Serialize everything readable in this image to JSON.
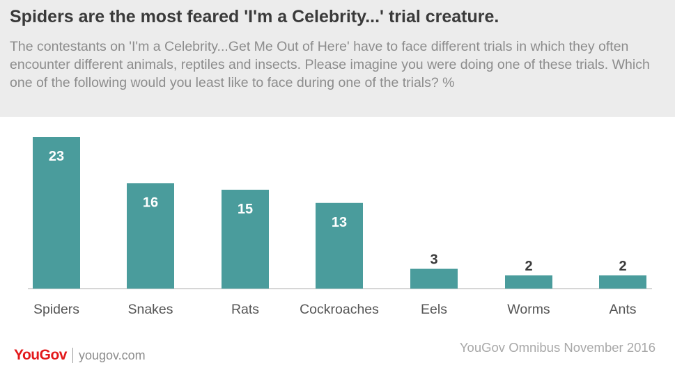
{
  "title": "Spiders are the most feared 'I'm a Celebrity...' trial creature.",
  "subtitle": "The contestants on 'I'm a Celebrity...Get Me Out of Here' have to face different trials in which they often encounter different animals, reptiles and insects. Please imagine you were doing one of these trials. Which one of the following would you least like to face during one of the trials? %",
  "footer": {
    "logo": "YouGov",
    "site": "yougov.com",
    "source": "YouGov Omnibus November 2016"
  },
  "colors": {
    "bar": "#4a9c9c",
    "label_inside": "#ffffff",
    "label_outside": "#3a3a3a"
  },
  "chart_data": {
    "type": "bar",
    "categories": [
      "Spiders",
      "Snakes",
      "Rats",
      "Cockroaches",
      "Eels",
      "Worms",
      "Ants"
    ],
    "values": [
      23,
      16,
      15,
      13,
      3,
      2,
      2
    ],
    "title": "Spiders are the most feared 'I'm a Celebrity...' trial creature.",
    "xlabel": "",
    "ylabel": "",
    "ylim": [
      0,
      23
    ],
    "grid": false,
    "legend": "none"
  }
}
